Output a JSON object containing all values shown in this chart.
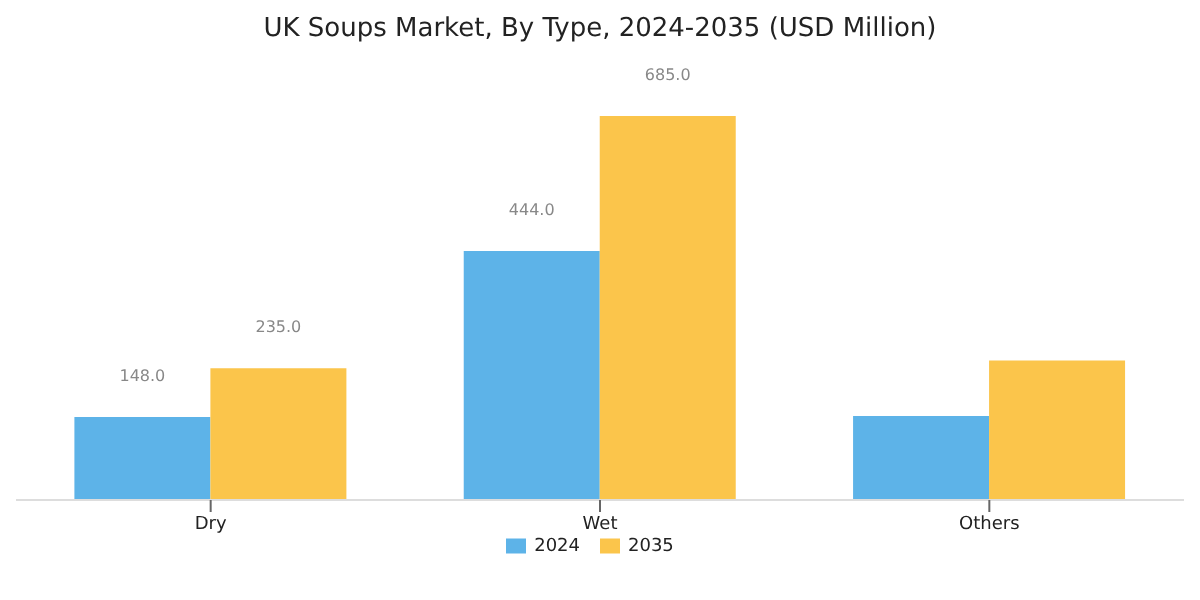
{
  "chart_data": {
    "type": "bar",
    "title": "UK Soups Market, By Type, 2024-2035 (USD Million)",
    "categories": [
      "Dry",
      "Wet",
      "Others"
    ],
    "series": [
      {
        "name": "2024",
        "color": "#5db3e8",
        "values": [
          148,
          444,
          150
        ],
        "value_labels": [
          "148.0",
          "444.0",
          null
        ]
      },
      {
        "name": "2035",
        "color": "#fbc54b",
        "values": [
          235,
          685,
          249
        ],
        "value_labels": [
          "235.0",
          "685.0",
          null
        ]
      }
    ],
    "legend": "bottom",
    "grid": false
  }
}
